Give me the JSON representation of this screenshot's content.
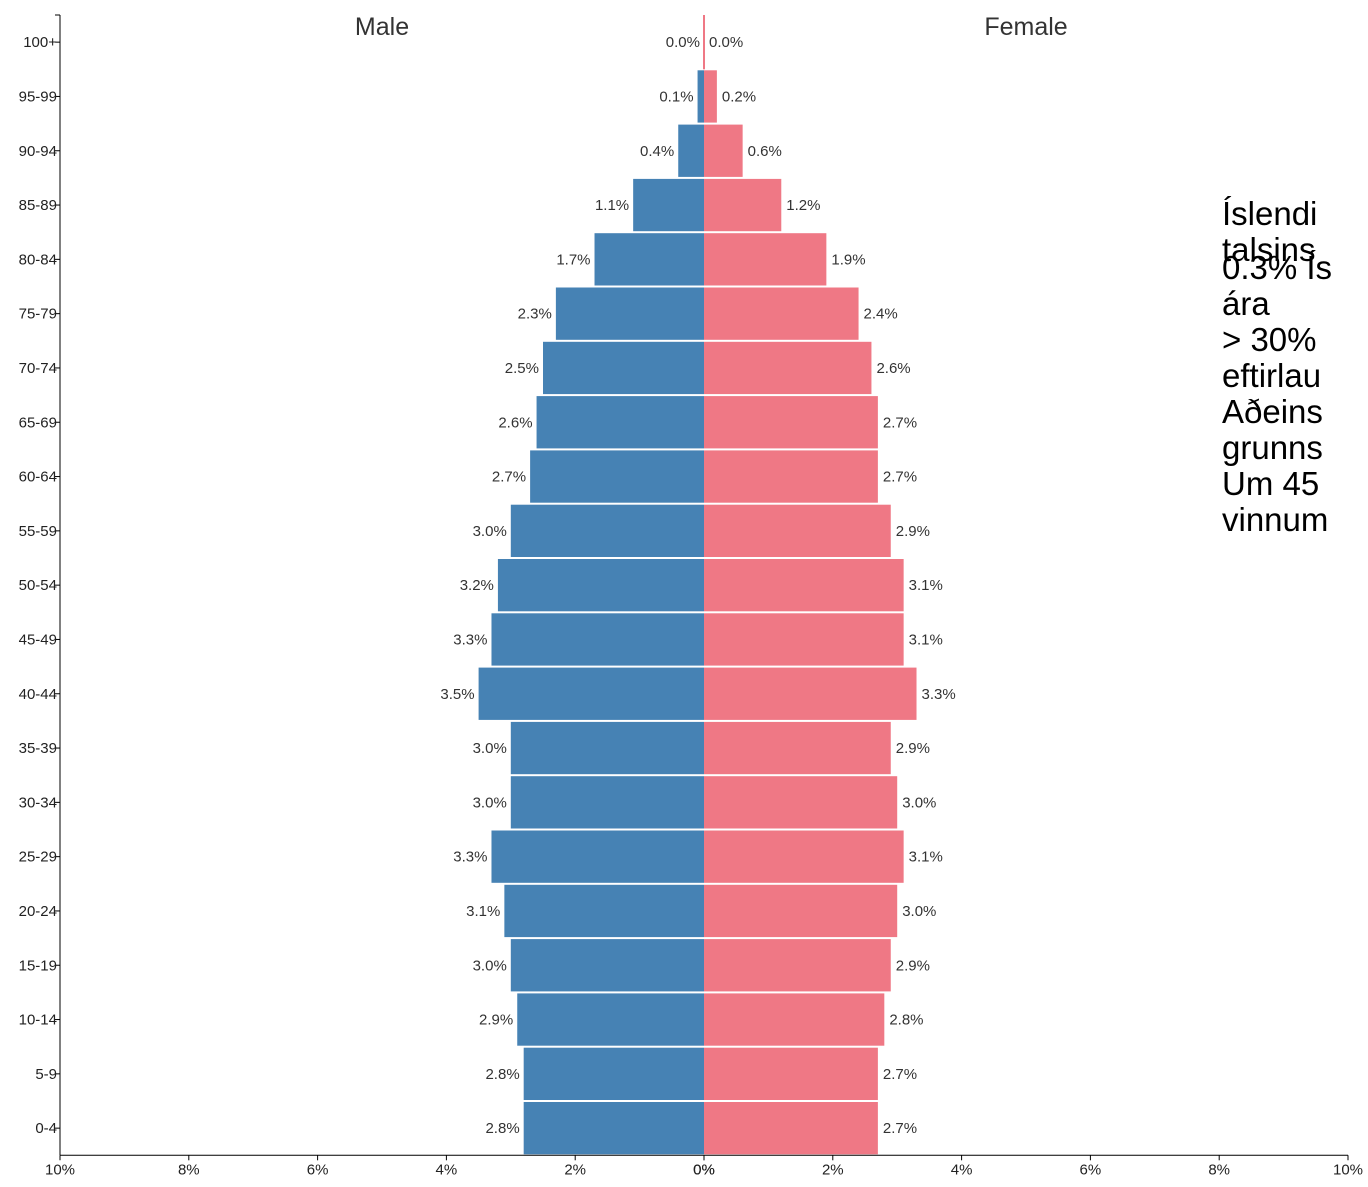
{
  "chart_data": {
    "type": "bar",
    "orientation": "horizontal-pyramid",
    "categories": [
      "100+",
      "95-99",
      "90-94",
      "85-89",
      "80-84",
      "75-79",
      "70-74",
      "65-69",
      "60-64",
      "55-59",
      "50-54",
      "45-49",
      "40-44",
      "35-39",
      "30-34",
      "25-29",
      "20-24",
      "15-19",
      "10-14",
      "5-9",
      "0-4"
    ],
    "series": [
      {
        "name": "Male",
        "color": "#4682b4",
        "values": [
          0.0,
          0.1,
          0.4,
          1.1,
          1.7,
          2.3,
          2.5,
          2.6,
          2.7,
          3.0,
          3.2,
          3.3,
          3.5,
          3.0,
          3.0,
          3.3,
          3.1,
          3.0,
          2.9,
          2.8,
          2.8
        ],
        "labels": [
          "0.0%",
          "0.1%",
          "0.4%",
          "1.1%",
          "1.7%",
          "2.3%",
          "2.5%",
          "2.6%",
          "2.7%",
          "3.0%",
          "3.2%",
          "3.3%",
          "3.5%",
          "3.0%",
          "3.0%",
          "3.3%",
          "3.1%",
          "3.0%",
          "2.9%",
          "2.8%",
          "2.8%"
        ]
      },
      {
        "name": "Female",
        "color": "#ef7885",
        "values": [
          0.0,
          0.2,
          0.6,
          1.2,
          1.9,
          2.4,
          2.6,
          2.7,
          2.7,
          2.9,
          3.1,
          3.1,
          3.3,
          2.9,
          3.0,
          3.1,
          3.0,
          2.9,
          2.8,
          2.7,
          2.7
        ],
        "labels": [
          "0.0%",
          "0.2%",
          "0.6%",
          "1.2%",
          "1.9%",
          "2.4%",
          "2.6%",
          "2.7%",
          "2.7%",
          "2.9%",
          "3.1%",
          "3.1%",
          "3.3%",
          "2.9%",
          "3.0%",
          "3.1%",
          "3.0%",
          "2.9%",
          "2.8%",
          "2.7%",
          "2.7%"
        ]
      }
    ],
    "x_ticks": [
      "10%",
      "8%",
      "6%",
      "4%",
      "2%",
      "0%",
      "0%",
      "2%",
      "4%",
      "6%",
      "8%",
      "10%"
    ],
    "xlim": [
      -10,
      10
    ],
    "grid": false,
    "legend": "none"
  },
  "side_text": {
    "line1": "Íslendi",
    "line2": "talsins",
    "line3": "0.3% Ís",
    "line4": "ára",
    "line5": "> 30%",
    "line6": "eftirlau",
    "line7": "Aðeins",
    "line8": "grunns",
    "line9": "Um 45",
    "line10": "vinnum"
  }
}
